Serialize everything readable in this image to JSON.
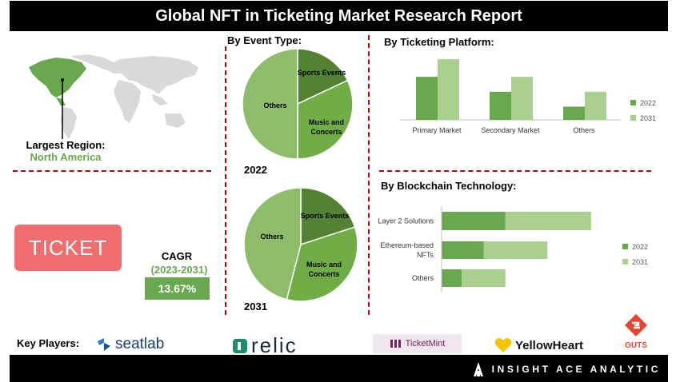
{
  "title": "Global NFT in Ticketing Market Research Report",
  "region": {
    "label": "Largest Region:",
    "value": "North America"
  },
  "ticket_text": "TICKET",
  "cagr": {
    "label": "CAGR",
    "period": "(2023-2031)",
    "value": "13.67%"
  },
  "sections": {
    "event_type": "By Event Type:",
    "ticketing_platform": "By Ticketing Platform:",
    "blockchain": "By Blockchain Technology:"
  },
  "key_players_label": "Key Players:",
  "players": [
    "seatlab",
    "relic",
    "TicketMint",
    "YellowHeart",
    "GUTS"
  ],
  "brand": "INSIGHT ACE ANALYTIC",
  "colors": {
    "dark_green": "#6aa84f",
    "light_green": "#a9d08e",
    "pie_dark": "#548235",
    "pie_mid": "#70ad47",
    "pie_light": "#8fbc6b",
    "red": "#c00000",
    "ticket": "#f26d6d"
  },
  "chart_data": [
    {
      "type": "pie",
      "year": "2022",
      "labels": [
        "Sports Events",
        "Music and Concerts",
        "Others"
      ],
      "values": [
        18,
        32,
        50
      ]
    },
    {
      "type": "pie",
      "year": "2031",
      "labels": [
        "Sports Events",
        "Music and Concerts",
        "Others"
      ],
      "values": [
        20,
        34,
        46
      ]
    },
    {
      "type": "bar",
      "title": "By Ticketing Platform:",
      "categories": [
        "Primary Market",
        "Secondary Market",
        "Others"
      ],
      "series": [
        {
          "name": "2022",
          "values": [
            49,
            32,
            15
          ]
        },
        {
          "name": "2031",
          "values": [
            69,
            49,
            32
          ]
        }
      ],
      "ylim": [
        0,
        80
      ],
      "legend": "right"
    },
    {
      "type": "bar",
      "orientation": "horizontal-stacked",
      "title": "By Blockchain Technology:",
      "categories": [
        "Layer 2 Solutions",
        "Ethereum-based NFTs",
        "Others"
      ],
      "series": [
        {
          "name": "2022",
          "values": [
            38,
            25,
            12
          ]
        },
        {
          "name": "2031",
          "values": [
            51,
            38,
            26
          ]
        }
      ],
      "xlim": [
        0,
        100
      ],
      "legend": "right"
    }
  ]
}
